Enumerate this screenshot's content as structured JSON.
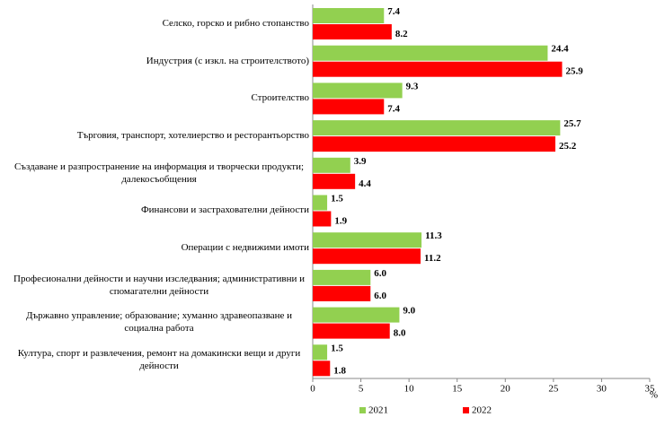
{
  "chart_data": {
    "type": "hbar",
    "categories": [
      "Селско, горско и рибно стопанство",
      "Индустрия (с изкл. на строителството)",
      "Строителство",
      "Търговия, транспорт, хотелиерство и ресторантьорство",
      "Създаване и разпространение на информация и творчески продукти; далекосъобщения",
      "Финансови и застрахователни дейности",
      "Операции с недвижими имоти",
      "Професионални дейности и научни изследвания; административни и спомагателни дейности",
      "Държавно управление; образование; хуманно здравеопазване и социална работа",
      "Култура, спорт и развлечения, ремонт на домакински вещи и други дейности"
    ],
    "series": [
      {
        "name": "2021",
        "color": "#92d050",
        "values": [
          7.4,
          24.4,
          9.3,
          25.7,
          3.9,
          1.5,
          11.3,
          6.0,
          9.0,
          1.5
        ],
        "value_labels": [
          "7.4",
          "24.4",
          "9.3",
          "25.7",
          "3.9",
          "1.5",
          "11.3",
          "6.0",
          "9.0",
          "1.5"
        ]
      },
      {
        "name": "2022",
        "color": "#ff0000",
        "values": [
          8.2,
          25.9,
          7.4,
          25.2,
          4.4,
          1.9,
          11.2,
          6.0,
          8.0,
          1.8
        ],
        "value_labels": [
          "8.2",
          "25.9",
          "7.4",
          "25.2",
          "4.4",
          "1.9",
          "11.2",
          "6.0",
          "8.0",
          "1.8"
        ]
      }
    ],
    "xlim": [
      0,
      35
    ],
    "xticks": [
      0,
      5,
      10,
      15,
      20,
      25,
      30,
      35
    ],
    "x_label": "%",
    "legend": "bottom"
  }
}
